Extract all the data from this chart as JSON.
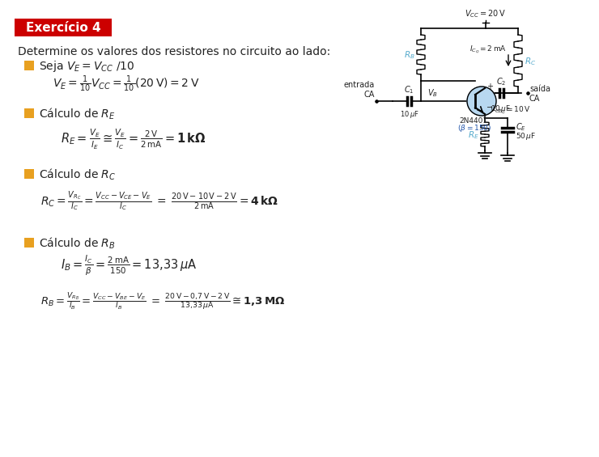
{
  "title": "Exercício 4",
  "title_bg": "#cc0000",
  "title_color": "#ffffff",
  "subtitle": "Determine os valores dos resistores no circuito ao lado:",
  "bullet_color": "#e8a020",
  "background": "#ffffff",
  "text_color": "#222222",
  "circuit_wire_color": "#000000",
  "circuit_label_color": "#55aacc",
  "vcc_label": "$V_{CC} = 20\\,\\mathrm{V}$",
  "icq_label": "$I_{C_Q} = 2\\,\\mathrm{mA}$",
  "rc_label": "$R_C$",
  "rb_label": "$R_B$",
  "re_label": "$R_E$",
  "c1_label": "$C_1$",
  "c1_val": "$10\\,\\mu\\mathrm{F}$",
  "c2_label": "$C_2$",
  "c2_val": "$10\\,\\mu\\mathrm{F}$",
  "ce_label": "$C_E$",
  "ce_val": "$50\\,\\mu\\mathrm{F}$",
  "vb_label": "$V_B$",
  "vce_label": "$V_{CE_Q} = 10\\,\\mathrm{V}$",
  "trans_label1": "2N4401",
  "trans_label2": "($\\beta = 150$)",
  "entrada_label": "entrada\nCA",
  "saida_label": "saída\nCA"
}
